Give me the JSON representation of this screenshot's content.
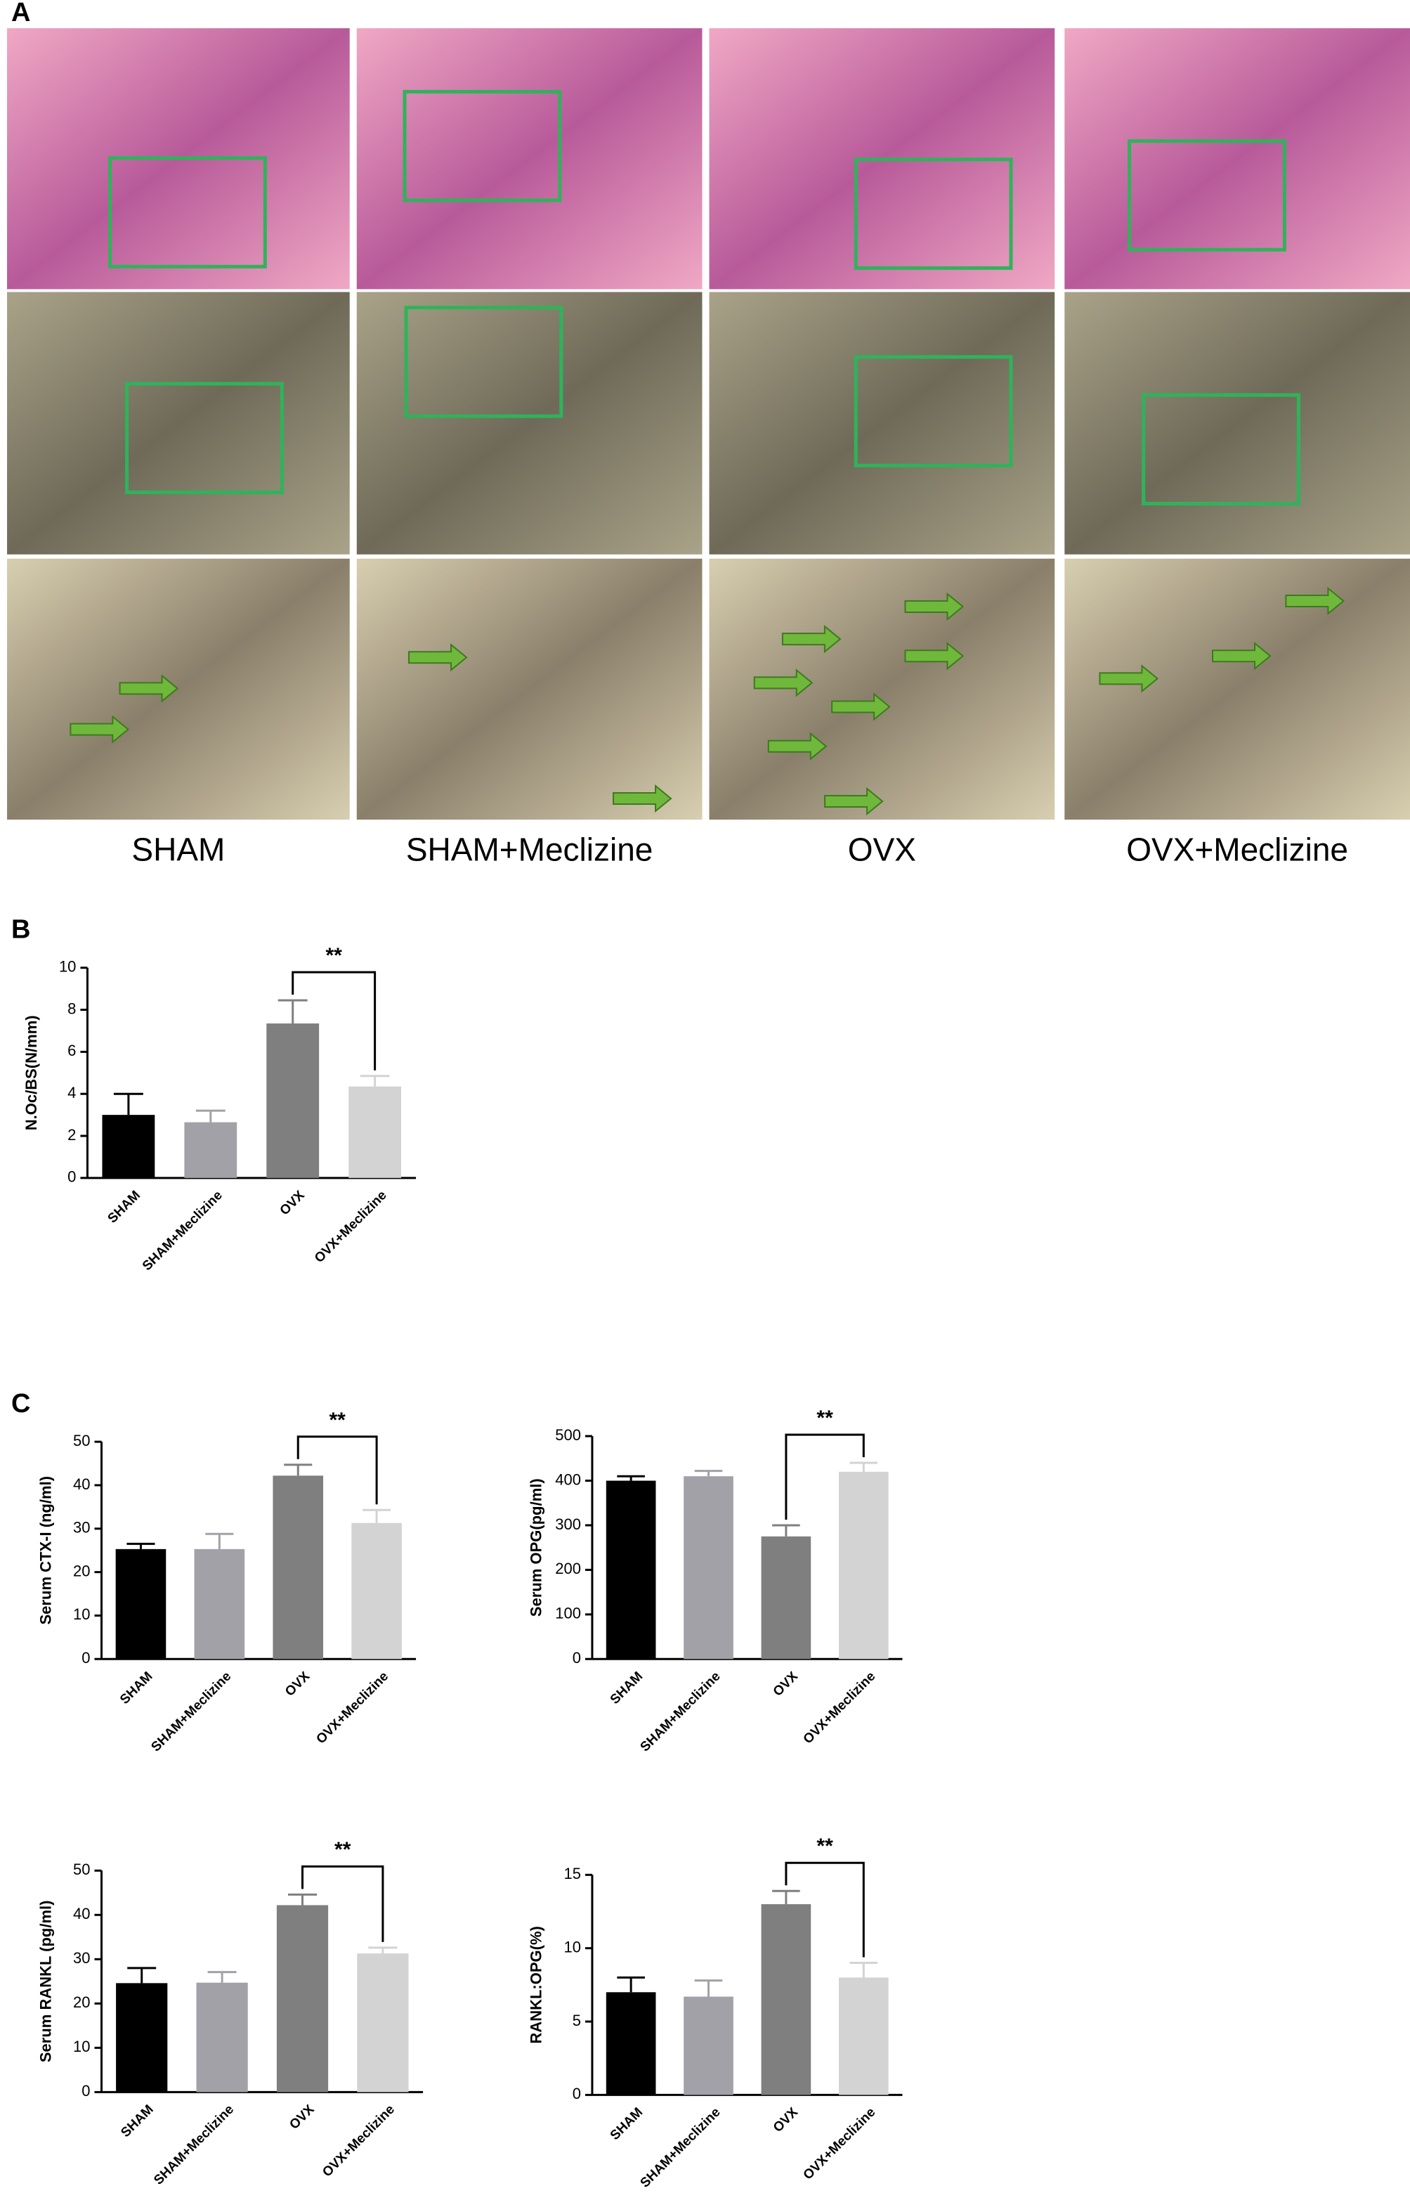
{
  "panel_labels": [
    "A",
    "B",
    "C"
  ],
  "image_columns": [
    "SHAM",
    "SHAM+Meclizine",
    "OVX",
    "OVX+Meclizine"
  ],
  "chart_data": [
    {
      "type": "bar",
      "ylabel": "N.Oc/BS(N/mm)",
      "categories": [
        "SHAM",
        "SHAM+Meclizine",
        "OVX",
        "OVX+Meclizine"
      ],
      "values": [
        3.0,
        2.65,
        7.35,
        4.35
      ],
      "errors": [
        1.0,
        0.55,
        1.1,
        0.5
      ],
      "colors": [
        "#000000",
        "#a2a1a8",
        "#7f7f7f",
        "#d3d3d3"
      ],
      "ylim": [
        0,
        10
      ],
      "yticks": [
        0,
        2,
        4,
        6,
        8,
        10
      ],
      "annotation": "**"
    },
    {
      "type": "bar",
      "ylabel": "Serum CTX-I (ng/ml)",
      "categories": [
        "SHAM",
        "SHAM+Meclizine",
        "OVX",
        "OVX+Meclizine"
      ],
      "values": [
        25.3,
        25.3,
        42.2,
        31.3
      ],
      "errors": [
        1.2,
        3.5,
        2.5,
        3.0
      ],
      "colors": [
        "#000000",
        "#a2a1a8",
        "#7f7f7f",
        "#d3d3d3"
      ],
      "ylim": [
        0,
        50
      ],
      "yticks": [
        0,
        10,
        20,
        30,
        40,
        50
      ],
      "annotation": "**"
    },
    {
      "type": "bar",
      "ylabel": "Serum OPG(pg/ml)",
      "categories": [
        "SHAM",
        "SHAM+Meclizine",
        "OVX",
        "OVX+Meclizine"
      ],
      "values": [
        400,
        410,
        275,
        420
      ],
      "errors": [
        10,
        12,
        25,
        20
      ],
      "colors": [
        "#000000",
        "#a2a1a8",
        "#7f7f7f",
        "#d3d3d3"
      ],
      "ylim": [
        0,
        500
      ],
      "yticks": [
        0,
        100,
        200,
        300,
        400,
        500
      ],
      "annotation": "**"
    },
    {
      "type": "bar",
      "ylabel": "Serum RANKL (pg/ml)",
      "categories": [
        "SHAM",
        "SHAM+Meclizine",
        "OVX",
        "OVX+Meclizine"
      ],
      "values": [
        24.6,
        24.7,
        42.2,
        31.3
      ],
      "errors": [
        3.4,
        2.4,
        2.4,
        1.3
      ],
      "colors": [
        "#000000",
        "#a2a1a8",
        "#7f7f7f",
        "#d3d3d3"
      ],
      "ylim": [
        0,
        50
      ],
      "yticks": [
        0,
        10,
        20,
        30,
        40,
        50
      ],
      "annotation": "**"
    },
    {
      "type": "bar",
      "ylabel": "RANKL:OPG(%)",
      "categories": [
        "SHAM",
        "SHAM+Meclizine",
        "OVX",
        "OVX+Meclizine"
      ],
      "values": [
        7.0,
        6.7,
        13.0,
        8.0
      ],
      "errors": [
        1.0,
        1.1,
        0.9,
        1.0
      ],
      "colors": [
        "#000000",
        "#a2a1a8",
        "#7f7f7f",
        "#d3d3d3"
      ],
      "ylim": [
        0,
        15
      ],
      "yticks": [
        0,
        5,
        10,
        15
      ],
      "annotation": "**"
    }
  ]
}
